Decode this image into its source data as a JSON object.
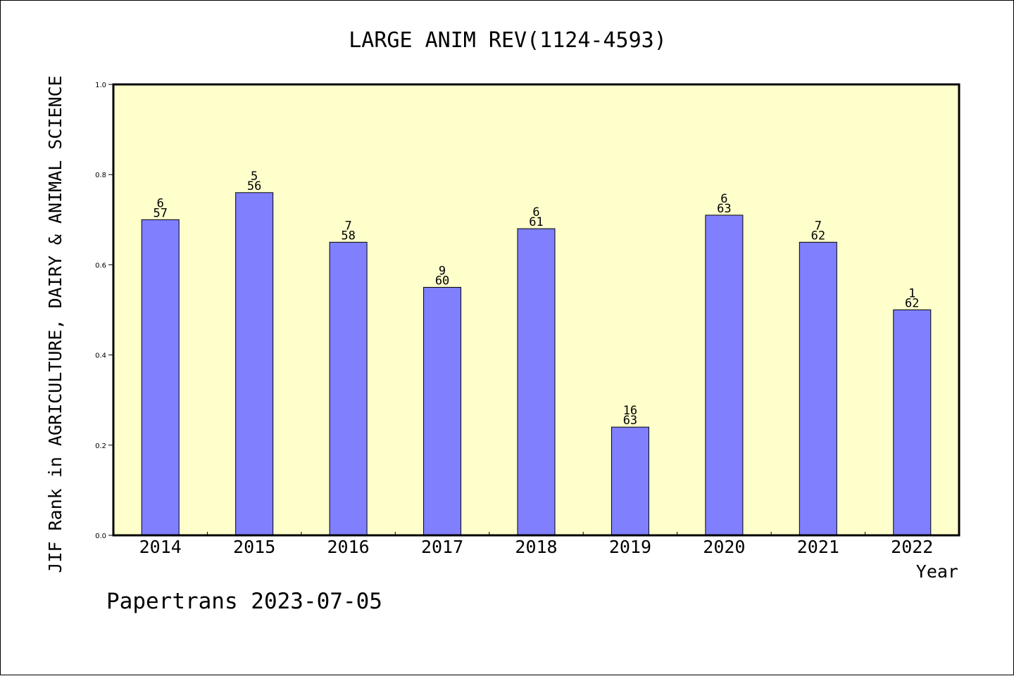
{
  "footer": "Papertrans 2023-07-05",
  "colors": {
    "plot_background": "#ffffcc",
    "bar_fill": "#8080ff",
    "bar_stroke": "#000000"
  },
  "chart_data": {
    "type": "bar",
    "title": "LARGE ANIM REV(1124-4593)",
    "xlabel": "Year",
    "ylabel": "JIF Rank in AGRICULTURE, DAIRY & ANIMAL SCIENCE",
    "ylim": [
      0,
      1.0
    ],
    "yticks": [
      "0.0",
      "0.2",
      "0.4",
      "0.6",
      "0.8",
      "1.0"
    ],
    "grid": false,
    "categories": [
      "2014",
      "2015",
      "2016",
      "2017",
      "2018",
      "2019",
      "2020",
      "2021",
      "2022"
    ],
    "values": [
      0.7,
      0.76,
      0.65,
      0.55,
      0.68,
      0.24,
      0.71,
      0.65,
      0.5
    ],
    "rank": [
      "6",
      "5",
      "7",
      "9",
      "6",
      "16",
      "6",
      "7",
      "1"
    ],
    "total": [
      "57",
      "56",
      "58",
      "60",
      "61",
      "63",
      "63",
      "62",
      "62"
    ]
  }
}
